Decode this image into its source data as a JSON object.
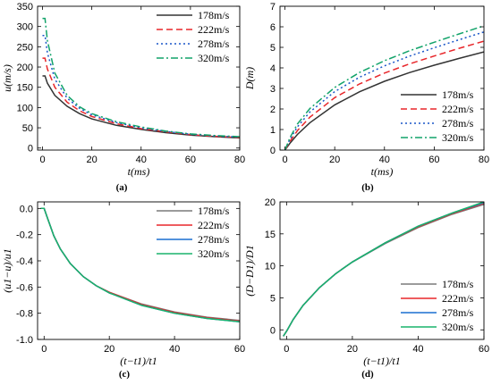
{
  "chart_data": [
    {
      "id": "a",
      "type": "line",
      "panel_label": "(a)",
      "xlabel": "t(ms)",
      "ylabel": "u(m/s)",
      "xlim": [
        -2,
        80
      ],
      "ylim": [
        -5,
        350
      ],
      "xticks": [
        0,
        20,
        40,
        60,
        80
      ],
      "yticks": [
        0,
        50,
        100,
        150,
        200,
        250,
        300,
        350
      ],
      "legend_position": "top-right",
      "series": [
        {
          "name": "178m/s",
          "color": "#333333",
          "dash": "solid",
          "x": [
            0,
            1,
            2,
            5,
            10,
            15,
            20,
            30,
            40,
            50,
            60,
            70,
            80
          ],
          "y": [
            178,
            178,
            160,
            130,
            103,
            85,
            72,
            56,
            46,
            38,
            32,
            28,
            25
          ]
        },
        {
          "name": "222m/s",
          "color": "#e8262a",
          "dash": "dash",
          "x": [
            0,
            1,
            2,
            5,
            10,
            15,
            20,
            30,
            40,
            50,
            60,
            70,
            80
          ],
          "y": [
            222,
            222,
            195,
            150,
            113,
            92,
            78,
            60,
            48,
            40,
            33,
            29,
            26
          ]
        },
        {
          "name": "278m/s",
          "color": "#1a56c8",
          "dash": "dot",
          "x": [
            0,
            1,
            2,
            5,
            10,
            15,
            20,
            30,
            40,
            50,
            60,
            70,
            80
          ],
          "y": [
            278,
            278,
            235,
            170,
            123,
            98,
            82,
            63,
            50,
            41,
            34,
            30,
            27
          ]
        },
        {
          "name": "320m/s",
          "color": "#12a36a",
          "dash": "dashdot",
          "x": [
            0,
            1,
            2,
            5,
            10,
            15,
            20,
            30,
            40,
            50,
            60,
            70,
            80
          ],
          "y": [
            320,
            320,
            265,
            185,
            130,
            102,
            85,
            65,
            52,
            42,
            35,
            31,
            28
          ]
        }
      ]
    },
    {
      "id": "b",
      "type": "line",
      "panel_label": "(b)",
      "xlabel": "t(ms)",
      "ylabel": "D(m)",
      "xlim": [
        -2,
        80
      ],
      "ylim": [
        0,
        7
      ],
      "xticks": [
        0,
        20,
        40,
        60,
        80
      ],
      "yticks": [
        0,
        1,
        2,
        3,
        4,
        5,
        6,
        7
      ],
      "legend_position": "bottom-right",
      "series": [
        {
          "name": "178m/s",
          "color": "#333333",
          "dash": "solid",
          "x": [
            0,
            2,
            5,
            10,
            20,
            30,
            40,
            50,
            60,
            70,
            80
          ],
          "y": [
            0,
            0.33,
            0.76,
            1.33,
            2.2,
            2.84,
            3.35,
            3.77,
            4.13,
            4.46,
            4.78
          ]
        },
        {
          "name": "222m/s",
          "color": "#e8262a",
          "dash": "dash",
          "x": [
            0,
            2,
            5,
            10,
            20,
            30,
            40,
            50,
            60,
            70,
            80
          ],
          "y": [
            0,
            0.42,
            0.95,
            1.6,
            2.55,
            3.22,
            3.75,
            4.19,
            4.58,
            4.95,
            5.3
          ]
        },
        {
          "name": "278m/s",
          "color": "#1a56c8",
          "dash": "dot",
          "x": [
            0,
            2,
            5,
            10,
            20,
            30,
            40,
            50,
            60,
            70,
            80
          ],
          "y": [
            0,
            0.52,
            1.13,
            1.85,
            2.85,
            3.55,
            4.1,
            4.57,
            4.98,
            5.37,
            5.75
          ]
        },
        {
          "name": "320m/s",
          "color": "#12a36a",
          "dash": "dashdot",
          "x": [
            0,
            2,
            5,
            10,
            20,
            30,
            40,
            50,
            60,
            70,
            80
          ],
          "y": [
            0,
            0.6,
            1.27,
            2.02,
            3.05,
            3.78,
            4.35,
            4.83,
            5.25,
            5.65,
            6.05
          ]
        }
      ]
    },
    {
      "id": "c",
      "type": "line",
      "panel_label": "(c)",
      "xlabel": "(t−t1)/t1",
      "ylabel": "(u1−u)/u1",
      "xlim": [
        -2,
        60
      ],
      "ylim": [
        -1.0,
        0.05
      ],
      "xticks": [
        0,
        20,
        40,
        60
      ],
      "yticks": [
        0.0,
        -0.2,
        -0.4,
        -0.6,
        -0.8,
        -1.0
      ],
      "ytick_labels": [
        "0.0",
        "-0.2",
        "-0.4",
        "-0.6",
        "-0.8",
        "-1.0"
      ],
      "legend_position": "top-right",
      "series": [
        {
          "name": "178m/s",
          "color": "#7a7a7a",
          "dash": "solid",
          "x": [
            -1,
            0,
            1,
            3,
            5,
            8,
            12,
            16,
            20,
            30,
            40,
            50,
            60
          ],
          "y": [
            0,
            0,
            -0.07,
            -0.21,
            -0.31,
            -0.42,
            -0.52,
            -0.59,
            -0.64,
            -0.73,
            -0.79,
            -0.83,
            -0.855
          ]
        },
        {
          "name": "222m/s",
          "color": "#e8262a",
          "dash": "solid",
          "x": [
            -1,
            0,
            1,
            3,
            5,
            8,
            12,
            16,
            20,
            30,
            40,
            50,
            60
          ],
          "y": [
            0,
            0,
            -0.07,
            -0.21,
            -0.31,
            -0.42,
            -0.52,
            -0.59,
            -0.64,
            -0.735,
            -0.795,
            -0.835,
            -0.86
          ]
        },
        {
          "name": "278m/s",
          "color": "#1a6fd0",
          "dash": "solid",
          "x": [
            -1,
            0,
            1,
            3,
            5,
            8,
            12,
            16,
            20,
            30,
            40,
            50,
            60
          ],
          "y": [
            0,
            0,
            -0.07,
            -0.21,
            -0.31,
            -0.42,
            -0.52,
            -0.59,
            -0.645,
            -0.74,
            -0.8,
            -0.84,
            -0.865
          ]
        },
        {
          "name": "320m/s",
          "color": "#19b36b",
          "dash": "solid",
          "x": [
            -1,
            0,
            1,
            3,
            5,
            8,
            12,
            16,
            20,
            30,
            40,
            50,
            60
          ],
          "y": [
            0,
            0,
            -0.07,
            -0.21,
            -0.31,
            -0.42,
            -0.52,
            -0.59,
            -0.645,
            -0.74,
            -0.8,
            -0.84,
            -0.865
          ]
        }
      ]
    },
    {
      "id": "d",
      "type": "line",
      "panel_label": "(d)",
      "xlabel": "(t−t1)/t1",
      "ylabel": "(D−D1)/D1",
      "xlim": [
        -2,
        60
      ],
      "ylim": [
        -1.5,
        20
      ],
      "xticks": [
        0,
        20,
        40,
        60
      ],
      "yticks": [
        0,
        5,
        10,
        15,
        20
      ],
      "legend_position": "bottom-right",
      "series": [
        {
          "name": "178m/s",
          "color": "#7a7a7a",
          "dash": "solid",
          "x": [
            -1,
            0,
            2,
            5,
            10,
            15,
            20,
            30,
            40,
            50,
            60
          ],
          "y": [
            -1,
            -0.2,
            1.6,
            3.8,
            6.6,
            8.8,
            10.6,
            13.5,
            16.0,
            18.0,
            19.6
          ]
        },
        {
          "name": "222m/s",
          "color": "#e8262a",
          "dash": "solid",
          "x": [
            -1,
            0,
            2,
            5,
            10,
            15,
            20,
            30,
            40,
            50,
            60
          ],
          "y": [
            -1,
            -0.2,
            1.6,
            3.8,
            6.6,
            8.8,
            10.6,
            13.6,
            16.1,
            18.1,
            19.8
          ]
        },
        {
          "name": "278m/s",
          "color": "#1a6fd0",
          "dash": "solid",
          "x": [
            -1,
            0,
            2,
            5,
            10,
            15,
            20,
            30,
            40,
            50,
            60
          ],
          "y": [
            -1,
            -0.2,
            1.6,
            3.8,
            6.6,
            8.8,
            10.6,
            13.6,
            16.2,
            18.2,
            19.9
          ]
        },
        {
          "name": "320m/s",
          "color": "#19b36b",
          "dash": "solid",
          "x": [
            -1,
            0,
            2,
            5,
            10,
            15,
            20,
            30,
            40,
            50,
            60
          ],
          "y": [
            -1,
            -0.2,
            1.6,
            3.8,
            6.6,
            8.8,
            10.6,
            13.6,
            16.2,
            18.2,
            20.0
          ]
        }
      ]
    }
  ]
}
